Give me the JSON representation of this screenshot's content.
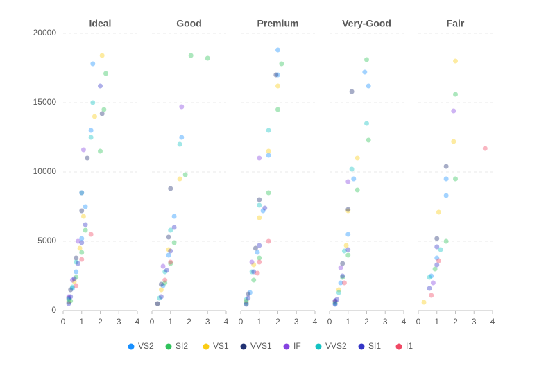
{
  "chart_data": [
    {
      "type": "scatter",
      "title": "Ideal",
      "xlim": [
        0,
        4
      ],
      "xticks": [
        0,
        1,
        2,
        3,
        4
      ],
      "ylim": [
        0,
        20000
      ],
      "yticks": [
        0,
        5000,
        10000,
        15000,
        20000
      ],
      "grid": true,
      "series": [
        {
          "name": "VS2",
          "color": "#1890ff",
          "x": [
            0.3,
            0.5,
            0.7,
            1.0,
            1.2,
            1.5,
            1.6
          ],
          "values": [
            600,
            1600,
            2800,
            5200,
            7500,
            13000,
            17800
          ]
        },
        {
          "name": "SI2",
          "color": "#2fc25b",
          "x": [
            0.4,
            0.7,
            1.0,
            1.2,
            2.0,
            2.2,
            2.3
          ],
          "values": [
            700,
            2400,
            4200,
            5800,
            11500,
            14500,
            17100
          ]
        },
        {
          "name": "VS1",
          "color": "#facc14",
          "x": [
            0.3,
            0.6,
            0.9,
            1.1,
            1.7,
            2.1
          ],
          "values": [
            650,
            2100,
            4500,
            6800,
            14000,
            18400
          ]
        },
        {
          "name": "VVS1",
          "color": "#223273",
          "x": [
            0.3,
            0.4,
            0.7,
            1.0,
            1.3,
            2.1
          ],
          "values": [
            900,
            1500,
            3800,
            7200,
            11000,
            14200
          ]
        },
        {
          "name": "IF",
          "color": "#8543e0",
          "x": [
            0.3,
            0.5,
            0.8,
            1.0,
            1.1
          ],
          "values": [
            1000,
            2200,
            5000,
            8500,
            11600
          ]
        },
        {
          "name": "VVS2",
          "color": "#13c2c2",
          "x": [
            0.3,
            0.5,
            0.7,
            1.0,
            1.5,
            1.6
          ],
          "values": [
            800,
            1700,
            3500,
            8500,
            12500,
            15000
          ]
        },
        {
          "name": "SI1",
          "color": "#3436c7",
          "x": [
            0.3,
            0.4,
            0.6,
            0.8,
            1.0,
            1.2,
            2.0
          ],
          "values": [
            500,
            1000,
            2300,
            3400,
            4900,
            6200,
            16200
          ]
        },
        {
          "name": "I1",
          "color": "#f04864",
          "x": [
            0.7,
            1.0,
            1.5
          ],
          "values": [
            1800,
            3700,
            5500
          ]
        }
      ]
    },
    {
      "type": "scatter",
      "title": "Good",
      "xlim": [
        0,
        4
      ],
      "xticks": [
        0,
        1,
        2,
        3,
        4
      ],
      "ylim": [
        0,
        20000
      ],
      "yticks": [
        0,
        5000,
        10000,
        15000,
        20000
      ],
      "grid": true,
      "series": [
        {
          "name": "VS2",
          "color": "#1890ff",
          "x": [
            0.3,
            0.6,
            0.9,
            1.2,
            1.6
          ],
          "values": [
            500,
            1800,
            4000,
            6800,
            12500
          ]
        },
        {
          "name": "SI2",
          "color": "#2fc25b",
          "x": [
            0.7,
            1.0,
            1.2,
            1.8,
            2.1,
            3.0
          ],
          "values": [
            2000,
            3400,
            4900,
            9800,
            18400,
            18200
          ]
        },
        {
          "name": "VS1",
          "color": "#facc14",
          "x": [
            0.3,
            0.5,
            0.9,
            1.5
          ],
          "values": [
            500,
            1500,
            4400,
            9500
          ]
        },
        {
          "name": "VVS1",
          "color": "#223273",
          "x": [
            0.5,
            0.9,
            1.0
          ],
          "values": [
            1900,
            5300,
            8800
          ]
        },
        {
          "name": "IF",
          "color": "#8543e0",
          "x": [
            0.6,
            1.6
          ],
          "values": [
            3200,
            14700
          ]
        },
        {
          "name": "VVS2",
          "color": "#13c2c2",
          "x": [
            0.4,
            0.7,
            1.0,
            1.5
          ],
          "values": [
            900,
            2800,
            5800,
            12000
          ]
        },
        {
          "name": "SI1",
          "color": "#3436c7",
          "x": [
            0.3,
            0.5,
            0.8,
            1.0,
            1.2
          ],
          "values": [
            500,
            1000,
            2900,
            4300,
            6000
          ]
        },
        {
          "name": "I1",
          "color": "#f04864",
          "x": [
            0.7,
            1.0
          ],
          "values": [
            2200,
            3500
          ]
        }
      ]
    },
    {
      "type": "scatter",
      "title": "Premium",
      "xlim": [
        0,
        4
      ],
      "xticks": [
        0,
        1,
        2,
        3,
        4
      ],
      "ylim": [
        0,
        20000
      ],
      "yticks": [
        0,
        5000,
        10000,
        15000,
        20000
      ],
      "grid": true,
      "series": [
        {
          "name": "VS2",
          "color": "#1890ff",
          "x": [
            0.3,
            0.5,
            0.9,
            1.2,
            1.5,
            2.0,
            2.0
          ],
          "values": [
            600,
            1300,
            4200,
            7200,
            11200,
            17000,
            18800
          ]
        },
        {
          "name": "SI2",
          "color": "#2fc25b",
          "x": [
            0.3,
            0.7,
            1.0,
            1.5,
            2.0,
            2.2
          ],
          "values": [
            500,
            2200,
            3800,
            8500,
            14500,
            17800
          ]
        },
        {
          "name": "VS1",
          "color": "#facc14",
          "x": [
            0.3,
            0.7,
            1.0,
            1.5,
            2.0
          ],
          "values": [
            700,
            3300,
            6700,
            11500,
            16200
          ]
        },
        {
          "name": "VVS1",
          "color": "#223273",
          "x": [
            0.4,
            0.8,
            1.0,
            1.9
          ],
          "values": [
            1200,
            4500,
            8000,
            17000
          ]
        },
        {
          "name": "IF",
          "color": "#8543e0",
          "x": [
            0.6,
            1.0
          ],
          "values": [
            3500,
            11000
          ]
        },
        {
          "name": "VVS2",
          "color": "#13c2c2",
          "x": [
            0.3,
            0.6,
            1.0,
            1.5
          ],
          "values": [
            800,
            2800,
            7600,
            13000
          ]
        },
        {
          "name": "SI1",
          "color": "#3436c7",
          "x": [
            0.3,
            0.4,
            0.7,
            1.0,
            1.3
          ],
          "values": [
            450,
            900,
            2800,
            4700,
            7400
          ]
        },
        {
          "name": "I1",
          "color": "#f04864",
          "x": [
            0.9,
            1.0,
            1.5
          ],
          "values": [
            2700,
            3500,
            5000
          ]
        }
      ]
    },
    {
      "type": "scatter",
      "title": "Very-Good",
      "xlim": [
        0,
        4
      ],
      "xticks": [
        0,
        1,
        2,
        3,
        4
      ],
      "ylim": [
        0,
        20000
      ],
      "yticks": [
        0,
        5000,
        10000,
        15000,
        20000
      ],
      "grid": true,
      "series": [
        {
          "name": "VS2",
          "color": "#1890ff",
          "x": [
            0.3,
            0.6,
            1.0,
            1.3,
            1.9,
            2.1
          ],
          "values": [
            550,
            2000,
            5500,
            9500,
            17200,
            16200
          ]
        },
        {
          "name": "SI2",
          "color": "#2fc25b",
          "x": [
            0.7,
            1.0,
            1.5,
            2.0,
            2.1
          ],
          "values": [
            2400,
            4000,
            8700,
            18100,
            12300
          ]
        },
        {
          "name": "VS1",
          "color": "#facc14",
          "x": [
            0.3,
            0.5,
            0.9,
            1.0,
            1.5
          ],
          "values": [
            600,
            1500,
            4700,
            7200,
            11000
          ]
        },
        {
          "name": "VVS1",
          "color": "#223273",
          "x": [
            0.3,
            0.7,
            1.0,
            1.2
          ],
          "values": [
            700,
            3400,
            7300,
            15800
          ]
        },
        {
          "name": "IF",
          "color": "#8543e0",
          "x": [
            0.3,
            0.6,
            1.0
          ],
          "values": [
            700,
            3100,
            9300
          ]
        },
        {
          "name": "VVS2",
          "color": "#13c2c2",
          "x": [
            0.3,
            0.5,
            0.8,
            1.2,
            2.0
          ],
          "values": [
            500,
            1300,
            4300,
            10200,
            13500
          ]
        },
        {
          "name": "SI1",
          "color": "#3436c7",
          "x": [
            0.3,
            0.4,
            0.7,
            1.0
          ],
          "values": [
            450,
            800,
            2500,
            4400
          ]
        },
        {
          "name": "I1",
          "color": "#f04864",
          "x": [
            0.8
          ],
          "values": [
            2000
          ]
        }
      ]
    },
    {
      "type": "scatter",
      "title": "Fair",
      "xlim": [
        0,
        4
      ],
      "xticks": [
        0,
        1,
        2,
        3,
        4
      ],
      "ylim": [
        0,
        20000
      ],
      "yticks": [
        0,
        5000,
        10000,
        15000,
        20000
      ],
      "grid": true,
      "series": [
        {
          "name": "VS2",
          "color": "#1890ff",
          "x": [
            0.7,
            1.0,
            1.5,
            1.5
          ],
          "values": [
            2500,
            3800,
            8300,
            9500
          ]
        },
        {
          "name": "SI2",
          "color": "#2fc25b",
          "x": [
            0.9,
            1.5,
            2.0,
            2.0
          ],
          "values": [
            3000,
            5000,
            9500,
            15600
          ]
        },
        {
          "name": "VS1",
          "color": "#facc14",
          "x": [
            0.3,
            1.1,
            1.9,
            2.0
          ],
          "values": [
            600,
            7100,
            12200,
            18000
          ]
        },
        {
          "name": "VVS1",
          "color": "#223273",
          "x": [
            1.0,
            1.5
          ],
          "values": [
            5200,
            10400
          ]
        },
        {
          "name": "IF",
          "color": "#8543e0",
          "x": [
            0.8,
            1.9
          ],
          "values": [
            2000,
            14400
          ]
        },
        {
          "name": "VVS2",
          "color": "#13c2c2",
          "x": [
            0.6,
            1.2
          ],
          "values": [
            2400,
            4400
          ]
        },
        {
          "name": "SI1",
          "color": "#3436c7",
          "x": [
            0.6,
            1.0,
            1.0
          ],
          "values": [
            1600,
            4600,
            3300
          ]
        },
        {
          "name": "I1",
          "color": "#f04864",
          "x": [
            0.7,
            1.1,
            3.6
          ],
          "values": [
            1100,
            3600,
            11700
          ]
        }
      ]
    }
  ]
}
